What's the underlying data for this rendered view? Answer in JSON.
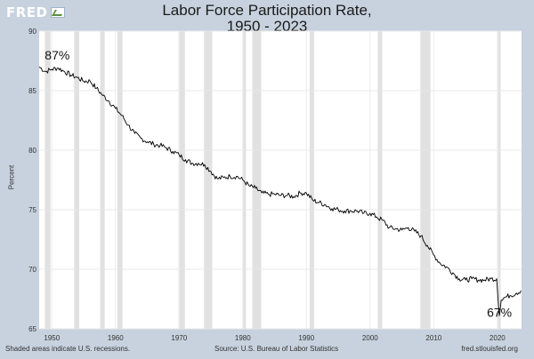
{
  "logo": {
    "text": "FRED"
  },
  "chart_data": {
    "type": "line",
    "title": "Labor Force Participation Rate,",
    "subtitle": "1950 - 2023",
    "xlabel": "",
    "ylabel": "Percent",
    "xlim": [
      1948.0,
      2023.8
    ],
    "ylim": [
      65,
      90
    ],
    "y_ticks": [
      65,
      70,
      75,
      80,
      85,
      90
    ],
    "x_ticks": [
      1950,
      1960,
      1970,
      1980,
      1990,
      2000,
      2010,
      2020
    ],
    "grid": true,
    "series": [
      {
        "name": "Labor Force Participation Rate",
        "color": "#000000",
        "x": [
          1948.0,
          1949.0,
          1950.0,
          1951.0,
          1952.0,
          1953.0,
          1954.0,
          1955.0,
          1956.0,
          1957.0,
          1958.0,
          1959.0,
          1960.0,
          1961.0,
          1962.0,
          1963.0,
          1964.0,
          1965.0,
          1966.0,
          1967.0,
          1968.0,
          1969.0,
          1970.0,
          1971.0,
          1972.0,
          1973.0,
          1974.0,
          1975.0,
          1976.0,
          1977.0,
          1978.0,
          1979.0,
          1980.0,
          1981.0,
          1982.0,
          1983.0,
          1984.0,
          1985.0,
          1986.0,
          1987.0,
          1988.0,
          1989.0,
          1990.0,
          1991.0,
          1992.0,
          1993.0,
          1994.0,
          1995.0,
          1996.0,
          1997.0,
          1998.0,
          1999.0,
          2000.0,
          2001.0,
          2002.0,
          2003.0,
          2004.0,
          2005.0,
          2006.0,
          2007.0,
          2008.0,
          2009.0,
          2010.0,
          2011.0,
          2012.0,
          2013.0,
          2014.0,
          2015.0,
          2016.0,
          2017.0,
          2018.0,
          2019.0,
          2019.9,
          2020.3,
          2020.6,
          2021.0,
          2022.0,
          2023.0,
          2023.7
        ],
        "values": [
          87.0,
          86.6,
          86.8,
          86.9,
          86.6,
          86.3,
          86.1,
          85.8,
          85.8,
          85.2,
          84.6,
          84.1,
          83.5,
          82.9,
          82.1,
          81.4,
          81.0,
          80.7,
          80.5,
          80.4,
          80.2,
          79.9,
          79.6,
          79.2,
          78.9,
          78.9,
          78.8,
          78.2,
          77.6,
          77.7,
          77.8,
          77.8,
          77.5,
          77.0,
          76.8,
          76.4,
          76.3,
          76.3,
          76.2,
          76.2,
          76.1,
          76.4,
          76.4,
          75.8,
          75.6,
          75.4,
          75.1,
          75.0,
          74.9,
          74.9,
          74.9,
          74.7,
          74.7,
          74.4,
          74.1,
          73.5,
          73.4,
          73.3,
          73.5,
          73.2,
          72.8,
          72.0,
          71.2,
          70.5,
          70.2,
          69.7,
          69.2,
          69.1,
          69.2,
          69.1,
          69.1,
          69.2,
          69.2,
          66.1,
          67.4,
          67.6,
          67.8,
          68.0,
          68.2
        ]
      }
    ],
    "recessions": [
      [
        1948.9,
        1949.8
      ],
      [
        1953.5,
        1954.3
      ],
      [
        1957.6,
        1958.3
      ],
      [
        1960.3,
        1961.1
      ],
      [
        1969.9,
        1970.9
      ],
      [
        1973.9,
        1975.2
      ],
      [
        1980.0,
        1980.5
      ],
      [
        1981.5,
        1982.9
      ],
      [
        1990.5,
        1991.2
      ],
      [
        2001.2,
        2001.9
      ],
      [
        2007.9,
        2009.5
      ],
      [
        2020.1,
        2020.4
      ]
    ],
    "annotations": [
      {
        "text": "87%",
        "x": 1950.0,
        "y": 87.0
      },
      {
        "text": "67%",
        "x": 2020.6,
        "y": 66.3
      }
    ]
  },
  "footer": {
    "left": "Shaded areas indicate U.S. recessions.",
    "center": "Source: U.S. Bureau of Labor Statistics",
    "right": "fred.stlouisfed.org"
  }
}
